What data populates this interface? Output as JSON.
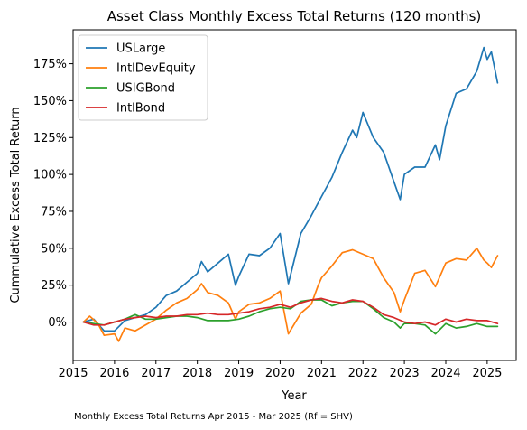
{
  "chart_data": {
    "type": "line",
    "title": "Asset Class Monthly Excess Total Returns (120 months)",
    "xlabel": "Year",
    "ylabel": "Cummulative Excess Total Return",
    "footnote": "Monthly Excess Total Returns Apr 2015 - Mar 2025 (Rf = SHV)",
    "x_unit": "year",
    "xlim": [
      2015.0,
      2025.7
    ],
    "ylim": [
      -0.26,
      1.98
    ],
    "x_ticks": [
      2015,
      2016,
      2017,
      2018,
      2019,
      2020,
      2021,
      2022,
      2023,
      2024,
      2025
    ],
    "x_tick_labels": [
      "2015",
      "2016",
      "2017",
      "2018",
      "2019",
      "2020",
      "2021",
      "2022",
      "2023",
      "2024",
      "2025"
    ],
    "y_ticks": [
      0,
      0.25,
      0.5,
      0.75,
      1.0,
      1.25,
      1.5,
      1.75
    ],
    "y_tick_labels": [
      "0%",
      "25%",
      "50%",
      "75%",
      "100%",
      "125%",
      "150%",
      "175%"
    ],
    "grid": false,
    "legend_position": "upper-left",
    "series": [
      {
        "name": "USLarge",
        "color": "#1f77b4",
        "points": [
          [
            2015.25,
            0.0
          ],
          [
            2015.5,
            0.02
          ],
          [
            2015.75,
            -0.06
          ],
          [
            2016.0,
            -0.06
          ],
          [
            2016.25,
            0.01
          ],
          [
            2016.5,
            0.03
          ],
          [
            2016.75,
            0.05
          ],
          [
            2017.0,
            0.1
          ],
          [
            2017.25,
            0.18
          ],
          [
            2017.5,
            0.21
          ],
          [
            2017.75,
            0.27
          ],
          [
            2018.0,
            0.33
          ],
          [
            2018.1,
            0.41
          ],
          [
            2018.25,
            0.34
          ],
          [
            2018.5,
            0.4
          ],
          [
            2018.75,
            0.46
          ],
          [
            2018.92,
            0.25
          ],
          [
            2019.0,
            0.31
          ],
          [
            2019.25,
            0.46
          ],
          [
            2019.5,
            0.45
          ],
          [
            2019.75,
            0.5
          ],
          [
            2020.0,
            0.6
          ],
          [
            2020.2,
            0.26
          ],
          [
            2020.5,
            0.6
          ],
          [
            2020.75,
            0.72
          ],
          [
            2021.0,
            0.85
          ],
          [
            2021.25,
            0.98
          ],
          [
            2021.5,
            1.15
          ],
          [
            2021.75,
            1.3
          ],
          [
            2021.85,
            1.25
          ],
          [
            2022.0,
            1.42
          ],
          [
            2022.25,
            1.25
          ],
          [
            2022.5,
            1.15
          ],
          [
            2022.75,
            0.95
          ],
          [
            2022.9,
            0.83
          ],
          [
            2023.0,
            1.0
          ],
          [
            2023.25,
            1.05
          ],
          [
            2023.5,
            1.05
          ],
          [
            2023.75,
            1.2
          ],
          [
            2023.85,
            1.1
          ],
          [
            2024.0,
            1.33
          ],
          [
            2024.25,
            1.55
          ],
          [
            2024.5,
            1.58
          ],
          [
            2024.75,
            1.7
          ],
          [
            2024.92,
            1.86
          ],
          [
            2025.0,
            1.78
          ],
          [
            2025.1,
            1.83
          ],
          [
            2025.25,
            1.62
          ]
        ]
      },
      {
        "name": "IntlDevEquity",
        "color": "#ff7f0e",
        "points": [
          [
            2015.25,
            0.0
          ],
          [
            2015.4,
            0.04
          ],
          [
            2015.6,
            -0.01
          ],
          [
            2015.75,
            -0.09
          ],
          [
            2016.0,
            -0.08
          ],
          [
            2016.1,
            -0.13
          ],
          [
            2016.25,
            -0.04
          ],
          [
            2016.5,
            -0.06
          ],
          [
            2016.75,
            -0.02
          ],
          [
            2017.0,
            0.02
          ],
          [
            2017.25,
            0.08
          ],
          [
            2017.5,
            0.13
          ],
          [
            2017.75,
            0.16
          ],
          [
            2018.0,
            0.22
          ],
          [
            2018.1,
            0.26
          ],
          [
            2018.25,
            0.2
          ],
          [
            2018.5,
            0.18
          ],
          [
            2018.75,
            0.13
          ],
          [
            2018.92,
            0.02
          ],
          [
            2019.0,
            0.07
          ],
          [
            2019.25,
            0.12
          ],
          [
            2019.5,
            0.13
          ],
          [
            2019.75,
            0.16
          ],
          [
            2020.0,
            0.21
          ],
          [
            2020.2,
            -0.08
          ],
          [
            2020.5,
            0.06
          ],
          [
            2020.75,
            0.12
          ],
          [
            2020.92,
            0.25
          ],
          [
            2021.0,
            0.3
          ],
          [
            2021.25,
            0.38
          ],
          [
            2021.5,
            0.47
          ],
          [
            2021.75,
            0.49
          ],
          [
            2022.0,
            0.46
          ],
          [
            2022.25,
            0.43
          ],
          [
            2022.5,
            0.3
          ],
          [
            2022.75,
            0.2
          ],
          [
            2022.9,
            0.07
          ],
          [
            2023.0,
            0.15
          ],
          [
            2023.25,
            0.33
          ],
          [
            2023.5,
            0.35
          ],
          [
            2023.75,
            0.24
          ],
          [
            2024.0,
            0.4
          ],
          [
            2024.25,
            0.43
          ],
          [
            2024.5,
            0.42
          ],
          [
            2024.75,
            0.5
          ],
          [
            2024.92,
            0.42
          ],
          [
            2025.0,
            0.4
          ],
          [
            2025.1,
            0.37
          ],
          [
            2025.25,
            0.45
          ]
        ]
      },
      {
        "name": "USIGBond",
        "color": "#2ca02c",
        "points": [
          [
            2015.25,
            0.0
          ],
          [
            2015.5,
            -0.01
          ],
          [
            2015.75,
            -0.02
          ],
          [
            2016.0,
            0.0
          ],
          [
            2016.25,
            0.02
          ],
          [
            2016.5,
            0.05
          ],
          [
            2016.75,
            0.02
          ],
          [
            2017.0,
            0.02
          ],
          [
            2017.25,
            0.03
          ],
          [
            2017.5,
            0.04
          ],
          [
            2017.75,
            0.04
          ],
          [
            2018.0,
            0.03
          ],
          [
            2018.25,
            0.01
          ],
          [
            2018.5,
            0.01
          ],
          [
            2018.75,
            0.01
          ],
          [
            2019.0,
            0.02
          ],
          [
            2019.25,
            0.04
          ],
          [
            2019.5,
            0.07
          ],
          [
            2019.75,
            0.09
          ],
          [
            2020.0,
            0.1
          ],
          [
            2020.25,
            0.09
          ],
          [
            2020.5,
            0.14
          ],
          [
            2020.75,
            0.15
          ],
          [
            2021.0,
            0.15
          ],
          [
            2021.25,
            0.11
          ],
          [
            2021.5,
            0.13
          ],
          [
            2021.75,
            0.14
          ],
          [
            2022.0,
            0.14
          ],
          [
            2022.25,
            0.09
          ],
          [
            2022.5,
            0.03
          ],
          [
            2022.75,
            0.0
          ],
          [
            2022.9,
            -0.04
          ],
          [
            2023.0,
            -0.01
          ],
          [
            2023.25,
            -0.01
          ],
          [
            2023.5,
            -0.02
          ],
          [
            2023.75,
            -0.08
          ],
          [
            2024.0,
            -0.01
          ],
          [
            2024.25,
            -0.04
          ],
          [
            2024.5,
            -0.03
          ],
          [
            2024.75,
            -0.01
          ],
          [
            2025.0,
            -0.03
          ],
          [
            2025.25,
            -0.03
          ]
        ]
      },
      {
        "name": "IntlBond",
        "color": "#d62728",
        "points": [
          [
            2015.25,
            0.0
          ],
          [
            2015.5,
            -0.02
          ],
          [
            2015.75,
            -0.02
          ],
          [
            2016.0,
            0.0
          ],
          [
            2016.25,
            0.02
          ],
          [
            2016.5,
            0.03
          ],
          [
            2016.75,
            0.04
          ],
          [
            2017.0,
            0.03
          ],
          [
            2017.25,
            0.04
          ],
          [
            2017.5,
            0.04
          ],
          [
            2017.75,
            0.05
          ],
          [
            2018.0,
            0.05
          ],
          [
            2018.25,
            0.06
          ],
          [
            2018.5,
            0.05
          ],
          [
            2018.75,
            0.05
          ],
          [
            2019.0,
            0.06
          ],
          [
            2019.25,
            0.07
          ],
          [
            2019.5,
            0.09
          ],
          [
            2019.75,
            0.1
          ],
          [
            2020.0,
            0.12
          ],
          [
            2020.25,
            0.1
          ],
          [
            2020.5,
            0.13
          ],
          [
            2020.75,
            0.15
          ],
          [
            2021.0,
            0.16
          ],
          [
            2021.25,
            0.14
          ],
          [
            2021.5,
            0.13
          ],
          [
            2021.75,
            0.15
          ],
          [
            2022.0,
            0.14
          ],
          [
            2022.25,
            0.1
          ],
          [
            2022.5,
            0.05
          ],
          [
            2022.75,
            0.03
          ],
          [
            2023.0,
            0.0
          ],
          [
            2023.25,
            -0.01
          ],
          [
            2023.5,
            0.0
          ],
          [
            2023.75,
            -0.02
          ],
          [
            2024.0,
            0.02
          ],
          [
            2024.25,
            0.0
          ],
          [
            2024.5,
            0.02
          ],
          [
            2024.75,
            0.01
          ],
          [
            2025.0,
            0.01
          ],
          [
            2025.25,
            -0.01
          ]
        ]
      }
    ]
  }
}
